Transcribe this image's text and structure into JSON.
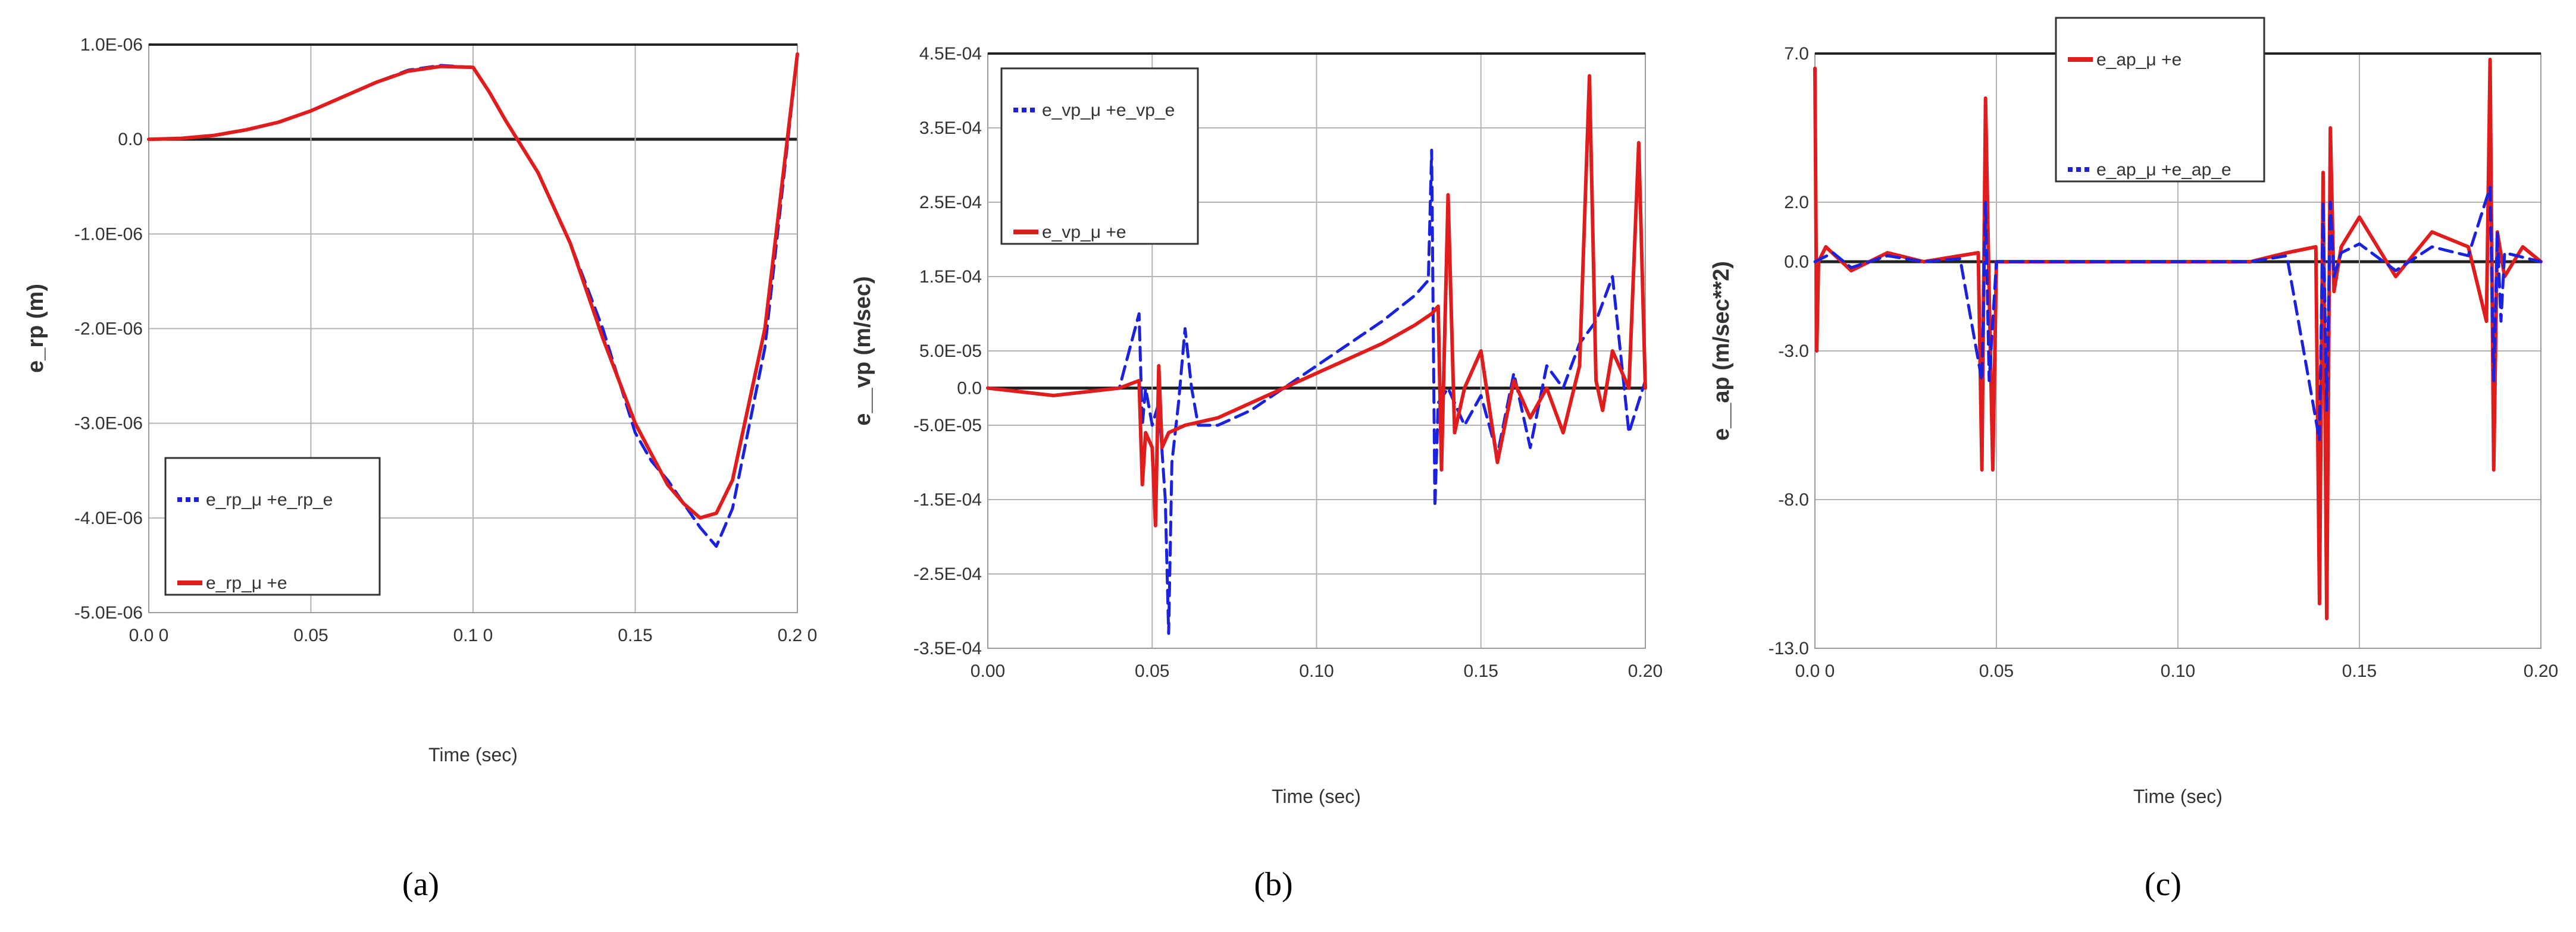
{
  "colors": {
    "blue": "#1a22e0",
    "red": "#e01c1c",
    "grid": "#b3b3b3",
    "axis": "#222222"
  },
  "chart_data": [
    {
      "type": "line",
      "caption": "(a)",
      "xlabel": "Time (sec)",
      "ylabel": "e_rp (m)",
      "xlim": [
        0,
        0.2
      ],
      "ylim": [
        -5e-06,
        1e-06
      ],
      "xticks": [
        0,
        0.05,
        0.1,
        0.15,
        0.2
      ],
      "xtick_labels": [
        "0.0 0",
        "0.05",
        "0.1 0",
        "0.15",
        "0.2 0"
      ],
      "yticks": [
        1e-06,
        0,
        -1e-06,
        -2e-06,
        -3e-06,
        -4e-06,
        -5e-06
      ],
      "ytick_labels": [
        "1.0E-06",
        "0.0",
        "-1.0E-06",
        "-2.0E-06",
        "-3.0E-06",
        "-4.0E-06",
        "-5.0E-06"
      ],
      "legend": "lower-left",
      "series": [
        {
          "name": "e_rp_μ +e_rp_e",
          "style": "dashed",
          "x": [
            0,
            0.01,
            0.02,
            0.03,
            0.04,
            0.05,
            0.06,
            0.07,
            0.08,
            0.09,
            0.1,
            0.105,
            0.11,
            0.12,
            0.13,
            0.14,
            0.15,
            0.155,
            0.16,
            0.165,
            0.17,
            0.175,
            0.18,
            0.19,
            0.2
          ],
          "y": [
            0,
            1e-08,
            4e-08,
            1e-07,
            1.8e-07,
            3e-07,
            4.5e-07,
            6e-07,
            7.3e-07,
            7.8e-07,
            7.6e-07,
            5e-07,
            2e-07,
            -3.5e-07,
            -1.1e-06,
            -2e-06,
            -3.1e-06,
            -3.4e-06,
            -3.6e-06,
            -3.85e-06,
            -4.1e-06,
            -4.3e-06,
            -3.9e-06,
            -2.2e-06,
            9e-07
          ]
        },
        {
          "name": "e_rp_μ +e",
          "style": "solid",
          "x": [
            0,
            0.01,
            0.02,
            0.03,
            0.04,
            0.05,
            0.06,
            0.07,
            0.08,
            0.09,
            0.1,
            0.105,
            0.11,
            0.12,
            0.13,
            0.14,
            0.15,
            0.16,
            0.165,
            0.17,
            0.175,
            0.18,
            0.19,
            0.2
          ],
          "y": [
            0,
            1e-08,
            4e-08,
            1e-07,
            1.8e-07,
            3e-07,
            4.5e-07,
            6e-07,
            7.2e-07,
            7.7e-07,
            7.6e-07,
            5e-07,
            2e-07,
            -3.5e-07,
            -1.1e-06,
            -2.1e-06,
            -3e-06,
            -3.65e-06,
            -3.85e-06,
            -4e-06,
            -3.95e-06,
            -3.6e-06,
            -2e-06,
            9e-07
          ]
        }
      ]
    },
    {
      "type": "line",
      "caption": "(b)",
      "xlabel": "Time (sec)",
      "ylabel": "e__vp (m/sec)",
      "xlim": [
        0,
        0.2
      ],
      "ylim": [
        -0.00035,
        0.00045
      ],
      "xticks": [
        0,
        0.05,
        0.1,
        0.15,
        0.2
      ],
      "xtick_labels": [
        "0.00",
        "0.05",
        "0.10",
        "0.15",
        "0.20"
      ],
      "yticks": [
        0.00045,
        0.00035,
        0.00025,
        0.00015,
        5e-05,
        0,
        -5e-05,
        -0.00015,
        -0.00025,
        -0.00035
      ],
      "ytick_labels": [
        "4.5E-04",
        "3.5E-04",
        "2.5E-04",
        "1.5E-04",
        "5.0E-05",
        "0.0",
        "-5.0E-05",
        "-1.5E-04",
        "-2.5E-04",
        "-3.5E-04"
      ],
      "legend": "top-left",
      "series": [
        {
          "name": "e_vp_μ +e_vp_e",
          "style": "dashed",
          "x": [
            0,
            0.02,
            0.04,
            0.046,
            0.047,
            0.048,
            0.05,
            0.052,
            0.054,
            0.055,
            0.056,
            0.058,
            0.06,
            0.062,
            0.064,
            0.07,
            0.08,
            0.09,
            0.1,
            0.11,
            0.12,
            0.13,
            0.134,
            0.135,
            0.136,
            0.137,
            0.14,
            0.145,
            0.15,
            0.155,
            0.16,
            0.165,
            0.17,
            0.175,
            0.18,
            0.185,
            0.19,
            0.195,
            0.2
          ],
          "y": [
            0,
            -1e-05,
            0,
            0.0001,
            -5e-05,
            0,
            -5e-05,
            -2e-05,
            -0.00015,
            -0.00033,
            -0.0001,
            -2e-05,
            8e-05,
            0,
            -5e-05,
            -5e-05,
            -3e-05,
            0,
            3e-05,
            6e-05,
            9e-05,
            0.000125,
            0.000145,
            0.00032,
            -0.00016,
            -2e-05,
            0,
            -5e-05,
            -1e-05,
            -9e-05,
            2e-05,
            -8e-05,
            3e-05,
            0,
            6e-05,
            9e-05,
            0.00015,
            -6e-05,
            1e-05
          ]
        },
        {
          "name": "e_vp_μ +e",
          "style": "solid",
          "x": [
            0,
            0.02,
            0.04,
            0.046,
            0.047,
            0.048,
            0.05,
            0.051,
            0.052,
            0.053,
            0.055,
            0.06,
            0.07,
            0.08,
            0.09,
            0.1,
            0.11,
            0.12,
            0.13,
            0.135,
            0.137,
            0.138,
            0.14,
            0.142,
            0.145,
            0.15,
            0.155,
            0.16,
            0.165,
            0.17,
            0.175,
            0.18,
            0.183,
            0.185,
            0.187,
            0.19,
            0.195,
            0.198,
            0.2
          ],
          "y": [
            0,
            -1e-05,
            0,
            1e-05,
            -0.00013,
            -6e-05,
            -8e-05,
            -0.000185,
            3e-05,
            -8e-05,
            -6e-05,
            -5e-05,
            -4e-05,
            -2e-05,
            0,
            2e-05,
            4e-05,
            6e-05,
            8.5e-05,
            0.0001,
            0.00011,
            -0.00011,
            0.00026,
            -6e-05,
            0,
            5e-05,
            -0.0001,
            1e-05,
            -4e-05,
            0,
            -6e-05,
            3e-05,
            0.00042,
            1e-05,
            -3e-05,
            5e-05,
            0,
            0.00033,
            0
          ]
        }
      ]
    },
    {
      "type": "line",
      "caption": "(c)",
      "xlabel": "Time (sec)",
      "ylabel": "e__ap (m/sec**2)",
      "xlim": [
        0,
        0.2
      ],
      "ylim": [
        -13,
        7
      ],
      "xticks": [
        0,
        0.05,
        0.1,
        0.15,
        0.2
      ],
      "xtick_labels": [
        "0.0 0",
        "0.05",
        "0.10",
        "0.15",
        "0.20"
      ],
      "yticks": [
        7,
        2,
        0,
        -3,
        -8,
        -13
      ],
      "ytick_labels": [
        "7.0",
        "2.0",
        "0.0",
        "-3.0",
        "-8.0",
        "-13.0"
      ],
      "legend": "top-center",
      "series": [
        {
          "name": "e_ap_μ +e",
          "style": "solid",
          "x": [
            0,
            0.0005,
            0.001,
            0.003,
            0.01,
            0.02,
            0.03,
            0.04,
            0.045,
            0.046,
            0.047,
            0.048,
            0.049,
            0.05,
            0.06,
            0.08,
            0.1,
            0.12,
            0.13,
            0.138,
            0.139,
            0.14,
            0.141,
            0.142,
            0.143,
            0.145,
            0.15,
            0.16,
            0.17,
            0.18,
            0.185,
            0.186,
            0.187,
            0.188,
            0.19,
            0.195,
            0.2
          ],
          "y": [
            6.5,
            -3,
            0,
            0.5,
            -0.3,
            0.3,
            0,
            0.2,
            0.3,
            -7,
            5.5,
            -1,
            -7,
            0,
            0,
            0,
            0,
            0,
            0.3,
            0.5,
            -11.5,
            3,
            -12,
            4.5,
            -1,
            0.5,
            1.5,
            -0.5,
            1,
            0.5,
            -2,
            6.8,
            -7,
            1,
            -0.5,
            0.5,
            0
          ]
        },
        {
          "name": "e_ap_μ +e_ap_e",
          "style": "dashed",
          "x": [
            0,
            0.005,
            0.01,
            0.02,
            0.03,
            0.04,
            0.046,
            0.047,
            0.048,
            0.05,
            0.06,
            0.08,
            0.1,
            0.12,
            0.13,
            0.139,
            0.14,
            0.141,
            0.142,
            0.143,
            0.145,
            0.15,
            0.16,
            0.17,
            0.18,
            0.186,
            0.187,
            0.188,
            0.189,
            0.19,
            0.2
          ],
          "y": [
            0,
            0.3,
            -0.2,
            0.2,
            0,
            0.1,
            -4,
            2,
            -4,
            0,
            0,
            0,
            0,
            0,
            0.2,
            -6,
            2,
            -5,
            2,
            -0.5,
            0.3,
            0.6,
            -0.3,
            0.5,
            0.2,
            2.5,
            -4,
            1,
            -2,
            0.3,
            0
          ]
        }
      ]
    }
  ]
}
